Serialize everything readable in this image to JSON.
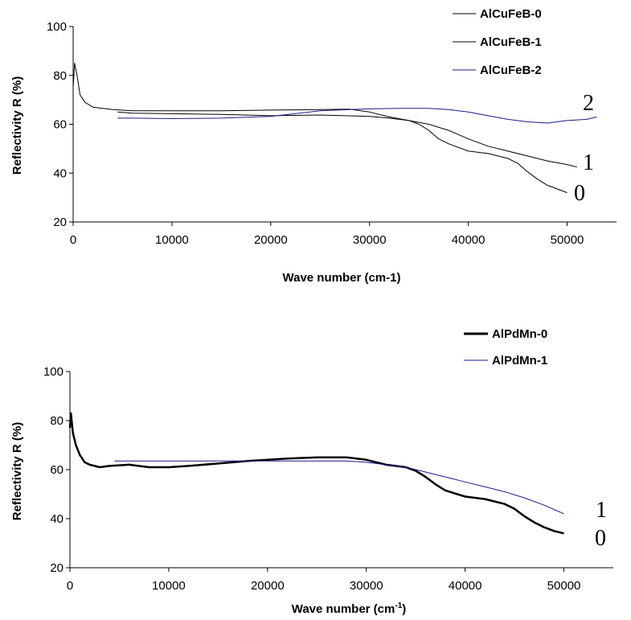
{
  "chart_data": [
    {
      "type": "line",
      "xlabel": "Wave number (cm-1)",
      "ylabel": "Reflectivity R (%)",
      "xlim": [
        0,
        55000
      ],
      "ylim": [
        20,
        100
      ],
      "xticks": [
        0,
        10000,
        20000,
        30000,
        40000,
        50000
      ],
      "yticks": [
        20,
        40,
        60,
        80,
        100
      ],
      "grid": false,
      "legend": "top-right",
      "series": [
        {
          "name": "AlCuFeB-0",
          "label": "0",
          "color": "#000000",
          "x": [
            0,
            150,
            400,
            700,
            1200,
            2000,
            3000,
            4000,
            6000,
            10000,
            15000,
            20000,
            25000,
            28000,
            30000,
            32000,
            34000,
            35000,
            36000,
            37000,
            38000,
            40000,
            42000,
            44000,
            45000,
            46000,
            47000,
            48000,
            49000,
            50000
          ],
          "y": [
            75,
            85,
            80,
            72,
            69,
            67,
            66.5,
            66,
            65.5,
            65.5,
            65.5,
            65.8,
            66,
            66.2,
            65,
            63,
            61.5,
            60,
            57.5,
            54,
            52,
            49,
            48,
            46,
            44,
            40.5,
            37.5,
            35,
            33.5,
            32
          ]
        },
        {
          "name": "AlCuFeB-1",
          "label": "1",
          "color": "#000000",
          "x": [
            4500,
            6000,
            10000,
            15000,
            20000,
            25000,
            30000,
            32000,
            34000,
            36000,
            38000,
            40000,
            42000,
            44000,
            46000,
            48000,
            50000,
            51000
          ],
          "y": [
            65,
            64.5,
            64.3,
            64,
            63.5,
            63.8,
            63.2,
            62.5,
            61.5,
            60,
            57.5,
            54,
            51,
            49,
            47,
            45,
            43.5,
            42.5
          ]
        },
        {
          "name": "AlCuFeB-2",
          "label": "2",
          "color": "#1a1a8c",
          "x": [
            4500,
            6000,
            10000,
            15000,
            20000,
            25000,
            28000,
            30000,
            33000,
            36000,
            38000,
            40000,
            42000,
            44000,
            46000,
            48000,
            50000,
            52000,
            53000
          ],
          "y": [
            62.5,
            62.5,
            62.3,
            62.5,
            63.2,
            65.5,
            66,
            66.3,
            66.5,
            66.5,
            66,
            65,
            63.5,
            62,
            61,
            60.5,
            61.5,
            62,
            63
          ]
        }
      ]
    },
    {
      "type": "line",
      "xlabel": "Wave number (cm-1)",
      "ylabel": "Reflectivity R (%)",
      "xlim": [
        0,
        55000
      ],
      "ylim": [
        20,
        100
      ],
      "xticks": [
        0,
        10000,
        20000,
        30000,
        40000,
        50000
      ],
      "yticks": [
        20,
        40,
        60,
        80,
        100
      ],
      "grid": false,
      "legend": "top-right",
      "series": [
        {
          "name": "AlPdMn-0",
          "label": "0",
          "color": "#000000",
          "x": [
            0,
            100,
            300,
            600,
            1000,
            1500,
            2000,
            2500,
            3000,
            4000,
            6000,
            8000,
            10000,
            12000,
            15000,
            18000,
            20000,
            22000,
            25000,
            28000,
            30000,
            32000,
            34000,
            35000,
            36000,
            37000,
            38000,
            40000,
            42000,
            44000,
            45000,
            46000,
            47000,
            48000,
            49000,
            50000
          ],
          "y": [
            77,
            83,
            75,
            70,
            66,
            63,
            62,
            61.5,
            61,
            61.5,
            62,
            61,
            61,
            61.5,
            62.5,
            63.5,
            64,
            64.5,
            65,
            65,
            64,
            62,
            61,
            59.5,
            57,
            54,
            51.5,
            49,
            48,
            46,
            44,
            41,
            38.5,
            36.5,
            35,
            34
          ]
        },
        {
          "name": "AlPdMn-1",
          "label": "1",
          "color": "#1a1a8c",
          "x": [
            4500,
            6000,
            10000,
            15000,
            20000,
            25000,
            28000,
            30000,
            32000,
            34000,
            36000,
            38000,
            40000,
            42000,
            44000,
            46000,
            48000,
            50000
          ],
          "y": [
            63.5,
            63.5,
            63.5,
            63.5,
            63.5,
            63.5,
            63.5,
            63,
            62,
            61,
            59,
            57,
            55,
            53,
            51,
            48.5,
            45.5,
            42
          ]
        }
      ]
    }
  ]
}
